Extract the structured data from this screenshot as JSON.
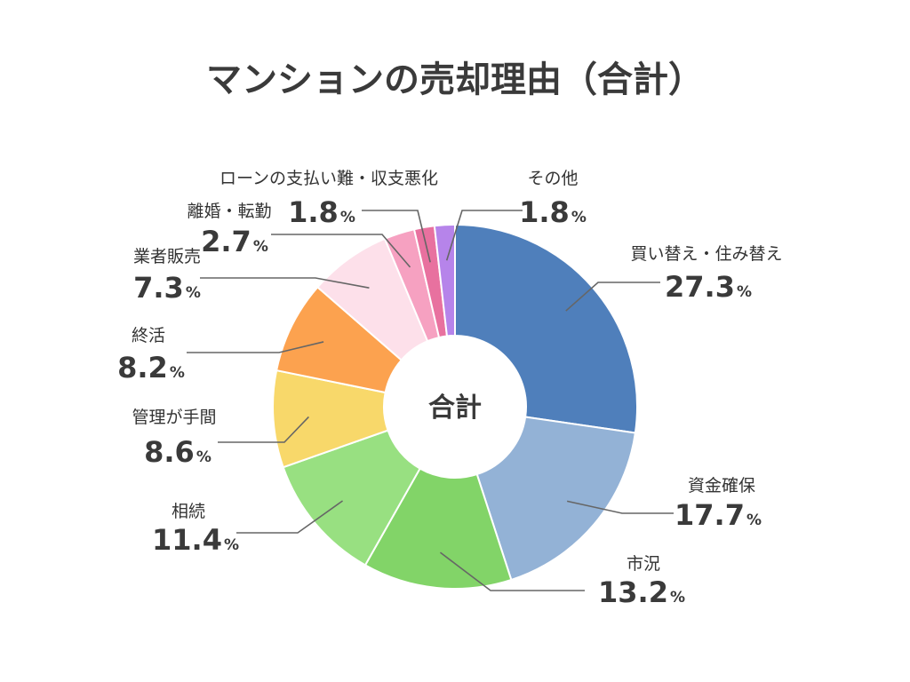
{
  "chart_data": {
    "type": "pie",
    "title": "マンションの売却理由（合計）",
    "center_label": "合計",
    "unit": "%",
    "categories": [
      "買い替え・住み替え",
      "資金確保",
      "市況",
      "相続",
      "管理が手間",
      "終活",
      "業者販売",
      "離婚・転勤",
      "ローンの支払い難・収支悪化",
      "その他"
    ],
    "values": [
      27.3,
      17.7,
      13.2,
      11.4,
      8.6,
      8.2,
      7.3,
      2.7,
      1.8,
      1.8
    ],
    "colors": [
      "#4f7fbb",
      "#93b2d6",
      "#82d468",
      "#98e081",
      "#f8d86a",
      "#fca24f",
      "#fde0ea",
      "#f6a1c1",
      "#e8719f",
      "#b684ea"
    ]
  }
}
